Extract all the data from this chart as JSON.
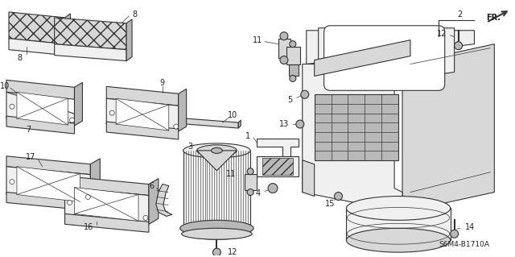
{
  "bg_color": "#ffffff",
  "fig_width": 6.4,
  "fig_height": 3.19,
  "dpi": 100,
  "diagram_label": "S6M4-B1710A",
  "fr_label": "FR.",
  "line_color": "#333333",
  "text_color": "#222222",
  "lw_main": 0.8,
  "lw_thin": 0.5,
  "face_light": "#f0f0f0",
  "face_mid": "#d8d8d8",
  "face_dark": "#b8b8b8",
  "face_white": "#ffffff",
  "hatch_color": "#555555"
}
